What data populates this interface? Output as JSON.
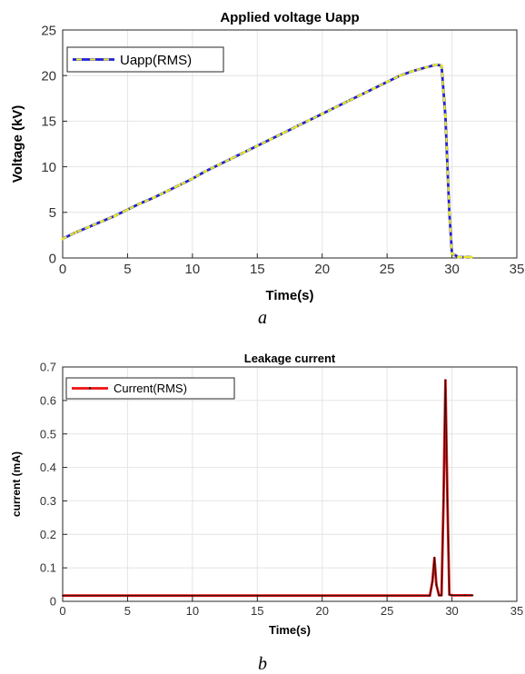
{
  "chart_data": [
    {
      "type": "line",
      "title": "Applied voltage Uapp",
      "xlabel": "Time(s)",
      "ylabel": "Voltage (kV)",
      "xlim": [
        0,
        35
      ],
      "ylim": [
        0,
        25
      ],
      "xticks": [
        "0",
        "5",
        "10",
        "15",
        "20",
        "25",
        "30",
        "35"
      ],
      "yticks": [
        "0",
        "5",
        "10",
        "15",
        "20",
        "25"
      ],
      "grid": true,
      "legend_position": "top-left",
      "caption": "a",
      "series": [
        {
          "name": "Uapp(RMS)",
          "line_color": "#1f1fd6",
          "marker_color": "#e8e82a",
          "x": [
            0,
            1,
            2,
            3,
            4,
            5,
            6,
            7,
            8,
            9,
            10,
            11,
            12,
            13,
            14,
            15,
            16,
            17,
            18,
            19,
            20,
            21,
            22,
            23,
            24,
            25,
            26,
            27,
            28,
            28.8,
            29.2,
            29.5,
            29.8,
            30,
            30.5,
            31,
            31.5
          ],
          "y": [
            2.1,
            2.8,
            3.4,
            4.0,
            4.6,
            5.3,
            6.0,
            6.6,
            7.3,
            8.0,
            8.7,
            9.5,
            10.2,
            10.9,
            11.6,
            12.3,
            13.0,
            13.7,
            14.4,
            15.1,
            15.8,
            16.5,
            17.2,
            17.9,
            18.6,
            19.3,
            20.0,
            20.5,
            20.9,
            21.2,
            21.1,
            15.5,
            5.0,
            0.5,
            0.1,
            0.1,
            0.1
          ]
        }
      ]
    },
    {
      "type": "line",
      "title": "Leakage current",
      "xlabel": "Time(s)",
      "ylabel": "current (mA)",
      "xlim": [
        0,
        35
      ],
      "ylim": [
        0,
        0.7
      ],
      "xticks": [
        "0",
        "5",
        "10",
        "15",
        "20",
        "25",
        "30",
        "35"
      ],
      "yticks": [
        "0",
        "0.1",
        "0.2",
        "0.3",
        "0.4",
        "0.5",
        "0.6",
        "0.7"
      ],
      "grid": true,
      "legend_position": "top-left",
      "caption": "b",
      "series": [
        {
          "name": "Current(RMS)",
          "line_color": "#ee1111",
          "marker_color": "#111111",
          "x": [
            0,
            5,
            10,
            15,
            20,
            25,
            28.3,
            28.5,
            28.65,
            28.8,
            29.0,
            29.2,
            29.35,
            29.5,
            29.65,
            29.8,
            30.0,
            31.0,
            31.6
          ],
          "y": [
            0.017,
            0.017,
            0.017,
            0.017,
            0.017,
            0.017,
            0.017,
            0.06,
            0.13,
            0.05,
            0.018,
            0.018,
            0.3,
            0.66,
            0.3,
            0.02,
            0.018,
            0.018,
            0.018
          ]
        }
      ]
    }
  ]
}
